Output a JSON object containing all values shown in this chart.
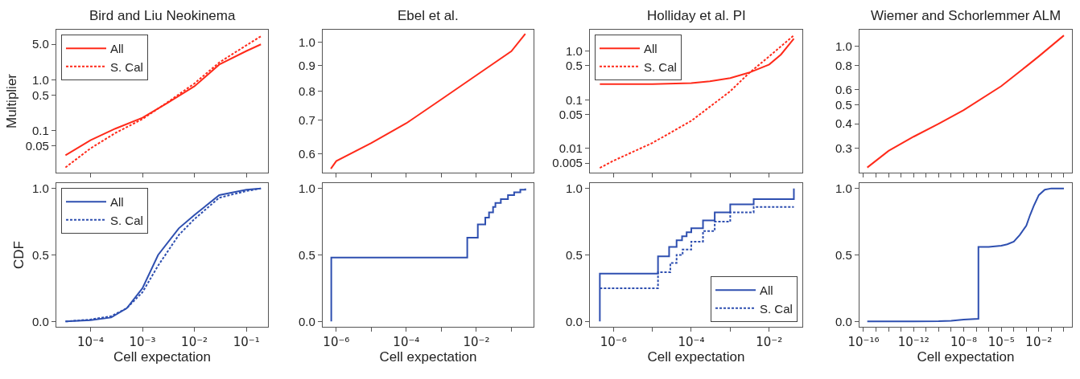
{
  "chart_data": [
    {
      "type": "line",
      "title": "Bird and Liu Neokinema",
      "ylabel": "Multiplier",
      "log": "xy",
      "legend": "top left",
      "tick_labels": "y",
      "xlim": [
        2.2e-05,
        0.26
      ],
      "xticks": [
        {
          "value": 0.0001,
          "label": null
        },
        {
          "value": 0.001,
          "label": null
        },
        {
          "value": 0.01,
          "label": null
        },
        {
          "value": 0.1,
          "label": null
        }
      ],
      "ylim": [
        0.015,
        9.7
      ],
      "yticks": [
        {
          "value": 0.05,
          "label": "0.05"
        },
        {
          "value": 0.1,
          "label": "0.1"
        },
        {
          "value": 0.5,
          "label": "0.5"
        },
        {
          "value": 1,
          "label": "1.0"
        },
        {
          "value": 5,
          "label": "5.0"
        }
      ],
      "series": [
        {
          "name": "All",
          "color": "#ff2a1a",
          "line_style": "solid",
          "x": [
            3.3e-05,
            0.0001,
            0.0003,
            0.001,
            0.003,
            0.01,
            0.03,
            0.1,
            0.19
          ],
          "values": [
            0.033,
            0.065,
            0.11,
            0.18,
            0.35,
            0.75,
            2.0,
            3.7,
            5.0
          ]
        },
        {
          "name": "S. Cal",
          "color": "#ff2a1a",
          "line_style": "dotted",
          "x": [
            3.3e-05,
            0.0001,
            0.0003,
            0.001,
            0.003,
            0.01,
            0.03,
            0.1,
            0.19
          ],
          "values": [
            0.019,
            0.045,
            0.09,
            0.17,
            0.36,
            0.85,
            2.2,
            4.8,
            7.2
          ]
        }
      ]
    },
    {
      "type": "line",
      "title": "Ebel et al.",
      "log": "xy",
      "tick_labels": "y",
      "xlim": [
        4.1e-07,
        0.43
      ],
      "xticks": [
        {
          "value": 1e-06,
          "label": null
        },
        {
          "value": 1e-05,
          "label": null
        },
        {
          "value": 0.0001,
          "label": null
        },
        {
          "value": 0.001,
          "label": null
        },
        {
          "value": 0.01,
          "label": null
        },
        {
          "value": 0.1,
          "label": null
        }
      ],
      "ylim": [
        0.55,
        1.06
      ],
      "yticks": [
        {
          "value": 0.6,
          "label": "0.6"
        },
        {
          "value": 0.7,
          "label": "0.7"
        },
        {
          "value": 0.8,
          "label": "0.8"
        },
        {
          "value": 0.9,
          "label": "0.9"
        },
        {
          "value": 1,
          "label": "1.0"
        }
      ],
      "series": [
        {
          "color": "#ff2a1a",
          "line_style": "solid",
          "x": [
            7e-07,
            1e-06,
            1e-05,
            0.0001,
            0.001,
            0.01,
            0.1,
            0.25
          ],
          "values": [
            0.56,
            0.58,
            0.63,
            0.69,
            0.77,
            0.86,
            0.96,
            1.04
          ]
        }
      ]
    },
    {
      "type": "line",
      "title": "Holliday et al. PI",
      "log": "xy",
      "legend": "top left",
      "tick_labels": "y",
      "xlim": [
        2.5e-07,
        0.071
      ],
      "xticks": [
        {
          "value": 1e-06,
          "label": null
        },
        {
          "value": 1e-05,
          "label": null
        },
        {
          "value": 0.0001,
          "label": null
        },
        {
          "value": 0.001,
          "label": null
        },
        {
          "value": 0.01,
          "label": null
        }
      ],
      "ylim": [
        0.0032,
        2.75
      ],
      "yticks": [
        {
          "value": 0.005,
          "label": "0.005"
        },
        {
          "value": 0.01,
          "label": "0.01"
        },
        {
          "value": 0.05,
          "label": "0.05"
        },
        {
          "value": 0.1,
          "label": "0.1"
        },
        {
          "value": 0.5,
          "label": "0.5"
        },
        {
          "value": 1,
          "label": "1.0"
        }
      ],
      "series": [
        {
          "name": "All",
          "color": "#ff2a1a",
          "line_style": "solid",
          "x": [
            4.5e-07,
            1e-06,
            1e-05,
            0.0001,
            0.0003,
            0.001,
            0.003,
            0.01,
            0.02,
            0.043
          ],
          "values": [
            0.21,
            0.21,
            0.21,
            0.22,
            0.24,
            0.28,
            0.36,
            0.53,
            0.85,
            1.8
          ]
        },
        {
          "name": "S. Cal",
          "color": "#ff2a1a",
          "line_style": "dotted",
          "x": [
            4.5e-07,
            1e-06,
            1e-05,
            0.0001,
            0.001,
            0.003,
            0.01,
            0.043
          ],
          "values": [
            0.004,
            0.0056,
            0.013,
            0.037,
            0.15,
            0.35,
            0.78,
            2.1
          ]
        }
      ]
    },
    {
      "type": "line",
      "title": "Wiemer and Schorlemmer ALM",
      "log": "xy",
      "tick_labels": "y",
      "xlim": [
        4.8e-17,
        4.4
      ],
      "xticks": [
        {
          "value": 1e-16,
          "label": null
        },
        {
          "value": 1e-15,
          "label": null
        },
        {
          "value": 1e-14,
          "label": null
        },
        {
          "value": 1e-13,
          "label": null
        },
        {
          "value": 1e-12,
          "label": null
        },
        {
          "value": 1e-11,
          "label": null
        },
        {
          "value": 1e-10,
          "label": null
        },
        {
          "value": 1e-09,
          "label": null
        },
        {
          "value": 1e-08,
          "label": null
        },
        {
          "value": 1e-07,
          "label": null
        },
        {
          "value": 1e-06,
          "label": null
        },
        {
          "value": 1e-05,
          "label": null
        },
        {
          "value": 0.0001,
          "label": null
        },
        {
          "value": 0.001,
          "label": null
        },
        {
          "value": 0.01,
          "label": null
        },
        {
          "value": 0.1,
          "label": null
        },
        {
          "value": 1,
          "label": null
        }
      ],
      "ylim": [
        0.224,
        1.22
      ],
      "yticks": [
        {
          "value": 0.3,
          "label": "0.3"
        },
        {
          "value": 0.4,
          "label": "0.4"
        },
        {
          "value": 0.5,
          "label": "0.5"
        },
        {
          "value": 0.6,
          "label": "0.6"
        },
        {
          "value": 0.8,
          "label": "0.8"
        },
        {
          "value": 1,
          "label": "1.0"
        }
      ],
      "series": [
        {
          "color": "#ff2a1a",
          "line_style": "solid",
          "x": [
            2e-16,
            1e-14,
            1e-12,
            1e-10,
            1e-08,
            1e-05,
            0.001,
            0.01,
            1
          ],
          "values": [
            0.238,
            0.29,
            0.343,
            0.4,
            0.47,
            0.625,
            0.79,
            0.89,
            1.14
          ]
        }
      ]
    },
    {
      "type": "line",
      "xlabel": "Cell expectation",
      "ylabel": "CDF",
      "log": "x",
      "legend": "top left",
      "xlim": [
        2.2e-05,
        0.26
      ],
      "xticks": [
        {
          "value": 0.0001,
          "label": "10⁻⁴"
        },
        {
          "value": 0.001,
          "label": "10⁻³"
        },
        {
          "value": 0.01,
          "label": "10⁻²"
        },
        {
          "value": 0.1,
          "label": "10⁻¹"
        }
      ],
      "ylim": [
        -0.04,
        1.04
      ],
      "yticks": [
        {
          "value": 0,
          "label": "0.0"
        },
        {
          "value": 0.5,
          "label": "0.5"
        },
        {
          "value": 1,
          "label": "1.0"
        }
      ],
      "series": [
        {
          "name": "All",
          "color": "#2e4fb0",
          "line_style": "solid",
          "x": [
            3.3e-05,
            0.0001,
            0.00025,
            0.0005,
            0.001,
            0.002,
            0.005,
            0.01,
            0.03,
            0.1,
            0.19
          ],
          "values": [
            0,
            0.01,
            0.03,
            0.1,
            0.25,
            0.5,
            0.7,
            0.8,
            0.95,
            0.99,
            1.0
          ]
        },
        {
          "name": "S. Cal",
          "color": "#2e4fb0",
          "line_style": "dotted",
          "x": [
            3.3e-05,
            0.0001,
            0.00025,
            0.0005,
            0.001,
            0.002,
            0.005,
            0.01,
            0.03,
            0.1,
            0.19
          ],
          "values": [
            0,
            0.015,
            0.04,
            0.1,
            0.22,
            0.42,
            0.65,
            0.77,
            0.93,
            0.98,
            1.0
          ]
        }
      ]
    },
    {
      "type": "step",
      "xlabel": "Cell expectation",
      "log": "x",
      "xlim": [
        4.1e-07,
        0.43
      ],
      "xticks": [
        {
          "value": 1e-06,
          "label": "10⁻⁶"
        },
        {
          "value": 1e-05,
          "label": null
        },
        {
          "value": 0.0001,
          "label": "10⁻⁴"
        },
        {
          "value": 0.001,
          "label": null
        },
        {
          "value": 0.01,
          "label": "10⁻²"
        },
        {
          "value": 0.1,
          "label": null
        }
      ],
      "ylim": [
        -0.04,
        1.04
      ],
      "yticks": [
        {
          "value": 0,
          "label": "0.0"
        },
        {
          "value": 0.5,
          "label": "0.5"
        },
        {
          "value": 1,
          "label": "1.0"
        }
      ],
      "series": [
        {
          "color": "#2e4fb0",
          "line_style": "solid",
          "x": [
            7.2e-07,
            7.2e-07,
            0.0055,
            0.011,
            0.018,
            0.023,
            0.03,
            0.035,
            0.05,
            0.08,
            0.12,
            0.18,
            0.25
          ],
          "values": [
            0,
            0.48,
            0.63,
            0.73,
            0.78,
            0.82,
            0.86,
            0.89,
            0.92,
            0.95,
            0.97,
            0.99,
            1.0
          ]
        }
      ]
    },
    {
      "type": "step",
      "xlabel": "Cell expectation",
      "log": "x",
      "legend": "bottom right",
      "xlim": [
        2.5e-07,
        0.071
      ],
      "xticks": [
        {
          "value": 1e-06,
          "label": "10⁻⁶"
        },
        {
          "value": 1e-05,
          "label": null
        },
        {
          "value": 0.0001,
          "label": "10⁻⁴"
        },
        {
          "value": 0.001,
          "label": null
        },
        {
          "value": 0.01,
          "label": "10⁻²"
        }
      ],
      "ylim": [
        -0.04,
        1.04
      ],
      "yticks": [
        {
          "value": 0,
          "label": "0.0"
        },
        {
          "value": 0.5,
          "label": "0.5"
        },
        {
          "value": 1,
          "label": "1.0"
        }
      ],
      "series": [
        {
          "name": "All",
          "color": "#2e4fb0",
          "line_style": "solid",
          "x": [
            4.5e-07,
            4.5e-07,
            1.4e-05,
            2.7e-05,
            4.2e-05,
            5.8e-05,
            7.6e-05,
            0.0001,
            0.0002,
            0.0004,
            0.001,
            0.004,
            0.043,
            0.043
          ],
          "values": [
            0,
            0.36,
            0.49,
            0.56,
            0.61,
            0.64,
            0.67,
            0.7,
            0.76,
            0.82,
            0.88,
            0.92,
            0.92,
            1.0
          ]
        },
        {
          "name": "S. Cal",
          "color": "#2e4fb0",
          "line_style": "dotted",
          "x": [
            4.5e-07,
            1.4e-05,
            2.9e-05,
            4.2e-05,
            6e-05,
            0.0001,
            0.0002,
            0.0004,
            0.001,
            0.004,
            0.043
          ],
          "values": [
            0.25,
            0.37,
            0.44,
            0.5,
            0.54,
            0.6,
            0.68,
            0.75,
            0.82,
            0.86,
            0.86
          ]
        }
      ]
    },
    {
      "type": "line",
      "xlabel": "Cell expectation",
      "log": "x",
      "xlim": [
        4.8e-17,
        4.4
      ],
      "xticks": [
        {
          "value": 1e-16,
          "label": "10⁻¹⁶"
        },
        {
          "value": 1e-15,
          "label": null
        },
        {
          "value": 1e-14,
          "label": null
        },
        {
          "value": 1e-13,
          "label": null
        },
        {
          "value": 1e-12,
          "label": "10⁻¹²"
        },
        {
          "value": 1e-11,
          "label": null
        },
        {
          "value": 1e-10,
          "label": null
        },
        {
          "value": 1e-09,
          "label": null
        },
        {
          "value": 1e-08,
          "label": "10⁻⁸"
        },
        {
          "value": 1e-07,
          "label": null
        },
        {
          "value": 1e-06,
          "label": null
        },
        {
          "value": 1e-05,
          "label": "10⁻⁵"
        },
        {
          "value": 0.0001,
          "label": null
        },
        {
          "value": 0.001,
          "label": null
        },
        {
          "value": 0.01,
          "label": "10⁻²"
        },
        {
          "value": 0.1,
          "label": null
        },
        {
          "value": 1,
          "label": null
        }
      ],
      "ylim": [
        -0.04,
        1.04
      ],
      "yticks": [
        {
          "value": 0,
          "label": "0.0"
        },
        {
          "value": 0.5,
          "label": "0.5"
        },
        {
          "value": 1,
          "label": "1.0"
        }
      ],
      "series": [
        {
          "color": "#2e4fb0",
          "line_style": "solid",
          "x": [
            2e-16,
            1e-12,
            1e-10,
            1e-09,
            1e-08,
            1.5e-07,
            1.5e-07,
            1e-06,
            1e-05,
            3e-05,
            0.0001,
            0.0003,
            0.001,
            0.002,
            0.004,
            0.01,
            0.03,
            0.1,
            1
          ],
          "values": [
            0,
            0,
            0.002,
            0.006,
            0.015,
            0.02,
            0.56,
            0.56,
            0.57,
            0.58,
            0.6,
            0.65,
            0.72,
            0.8,
            0.87,
            0.95,
            0.99,
            1.0,
            1.0
          ]
        }
      ]
    }
  ]
}
